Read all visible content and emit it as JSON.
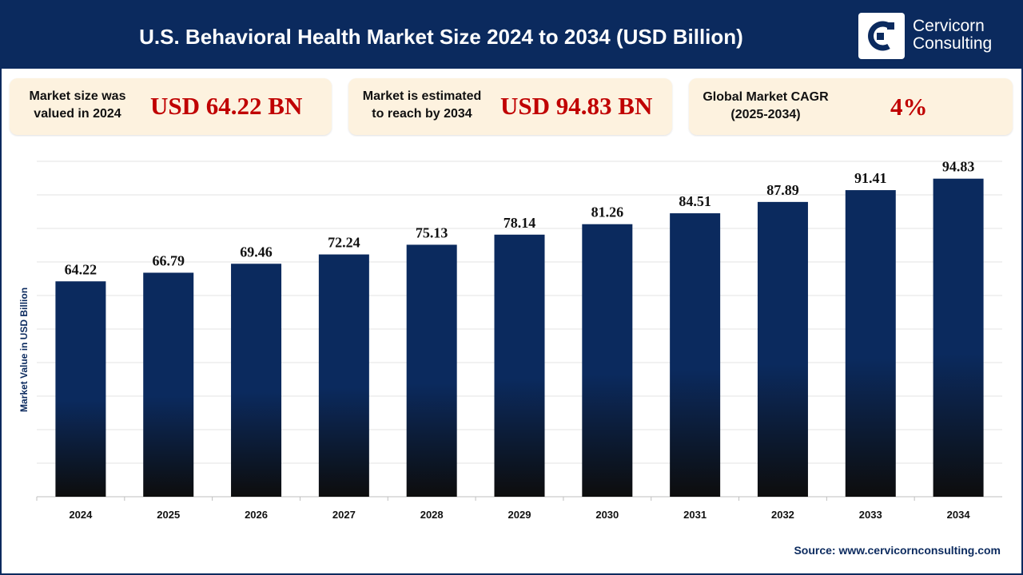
{
  "header": {
    "title": "U.S. Behavioral Health Market Size 2024 to 2034 (USD Billion)",
    "logo_line1": "Cervicorn",
    "logo_line2": "Consulting"
  },
  "cards": [
    {
      "label_line1": "Market size was",
      "label_line2": "valued in 2024",
      "value": "USD 64.22 BN"
    },
    {
      "label_line1": "Market is estimated",
      "label_line2": "to reach by 2034",
      "value": "USD 94.83 BN"
    },
    {
      "label_line1": "Global Market CAGR",
      "label_line2": "(2025-2034)",
      "value": "4%"
    }
  ],
  "chart_data": {
    "type": "bar",
    "categories": [
      "2024",
      "2025",
      "2026",
      "2027",
      "2028",
      "2029",
      "2030",
      "2031",
      "2032",
      "2033",
      "2034"
    ],
    "values": [
      64.22,
      66.79,
      69.46,
      72.24,
      75.13,
      78.14,
      81.26,
      84.51,
      87.89,
      91.41,
      94.83
    ],
    "ylabel": "Market Value in USD Billion",
    "xlabel": "",
    "ylim": [
      0,
      100
    ],
    "grid": true,
    "bar_color": "#0b2a5e",
    "bar_gradient_bottom": "#0d0d0d"
  },
  "footer": {
    "source_prefix": "Source:",
    "source_url": "www.cervicornconsulting.com"
  }
}
